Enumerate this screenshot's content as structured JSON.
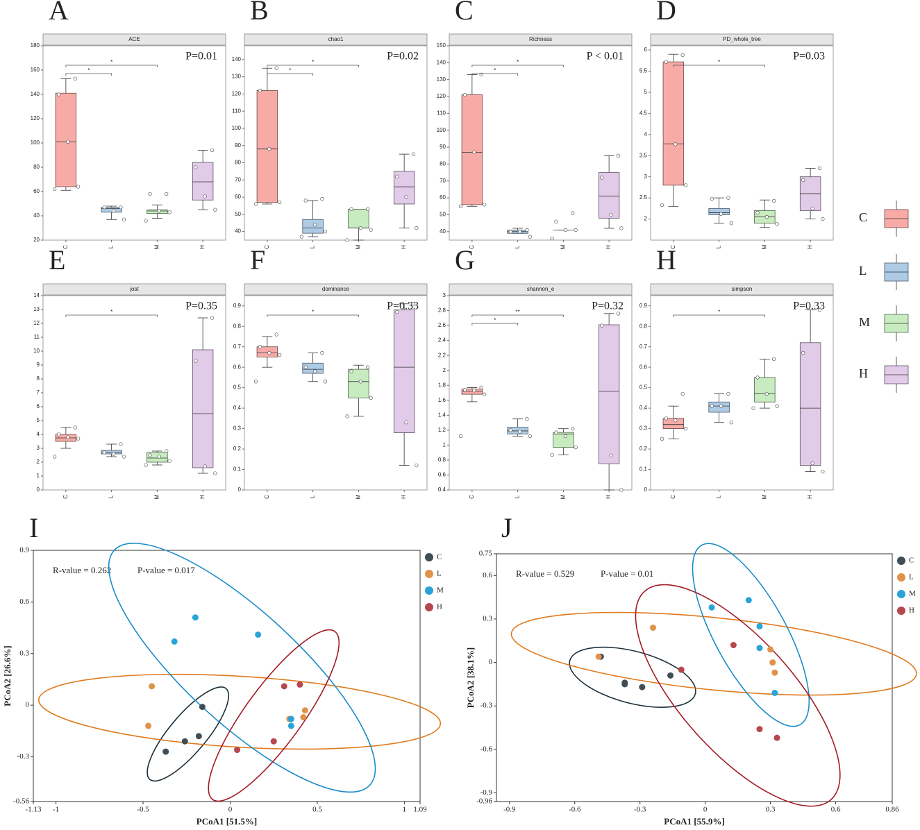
{
  "legend": {
    "labels": [
      "C",
      "L",
      "M",
      "H"
    ],
    "fill": [
      "#f8aba6",
      "#aecbe6",
      "#c8ecc0",
      "#e1cbe8"
    ],
    "stroke": [
      "#6b4a48",
      "#4a5968",
      "#4d6449",
      "#5e5163"
    ]
  },
  "chart_data": [
    {
      "type": "box",
      "panel": "A",
      "title": "ACE",
      "annotation": "P=0.01",
      "categories": [
        "C",
        "L",
        "M",
        "H"
      ],
      "ylim": [
        20,
        180
      ],
      "yticks": [
        20,
        40,
        60,
        80,
        100,
        120,
        140,
        160,
        180
      ],
      "boxes": [
        {
          "min": 61,
          "q1": 64,
          "median": 101,
          "q3": 141,
          "max": 153,
          "points": [
            153,
            140,
            101,
            64,
            62
          ]
        },
        {
          "min": 37,
          "q1": 43,
          "median": 46,
          "q3": 47,
          "max": 48,
          "points": [
            47,
            47,
            44,
            37
          ]
        },
        {
          "min": 38,
          "q1": 42,
          "median": 44,
          "q3": 45,
          "max": 49,
          "points": [
            58,
            58,
            44,
            43,
            36
          ]
        },
        {
          "min": 45,
          "q1": 53,
          "median": 68,
          "q3": 84,
          "max": 94,
          "points": [
            94,
            80,
            56,
            45
          ]
        }
      ],
      "brackets": [
        {
          "from": 0,
          "to": 1,
          "label": "*"
        },
        {
          "from": 0,
          "to": 2,
          "label": "*"
        }
      ]
    },
    {
      "type": "box",
      "panel": "B",
      "title": "chao1",
      "annotation": "P=0.02",
      "categories": [
        "C",
        "L",
        "M",
        "H"
      ],
      "ylim": [
        35,
        148
      ],
      "yticks": [
        40,
        50,
        60,
        70,
        80,
        90,
        100,
        110,
        120,
        130,
        140
      ],
      "boxes": [
        {
          "min": 56,
          "q1": 57,
          "median": 88,
          "q3": 122,
          "max": 135,
          "points": [
            135,
            122,
            88,
            57,
            56
          ]
        },
        {
          "min": 37,
          "q1": 39,
          "median": 42,
          "q3": 47,
          "max": 58,
          "points": [
            59,
            58,
            44,
            40,
            37
          ]
        },
        {
          "min": 35,
          "q1": 42,
          "median": 42,
          "q3": 53,
          "max": 53,
          "points": [
            53,
            53,
            42,
            41,
            35
          ]
        },
        {
          "min": 42,
          "q1": 56,
          "median": 66,
          "q3": 75,
          "max": 85,
          "points": [
            85,
            72,
            60,
            42
          ]
        }
      ],
      "brackets": [
        {
          "from": 0,
          "to": 1,
          "label": "*"
        },
        {
          "from": 0,
          "to": 2,
          "label": "*"
        }
      ]
    },
    {
      "type": "box",
      "panel": "C",
      "title": "Richness",
      "annotation": "P < 0.01",
      "categories": [
        "C",
        "L",
        "M",
        "H"
      ],
      "ylim": [
        35,
        150
      ],
      "yticks": [
        40,
        50,
        60,
        70,
        80,
        90,
        100,
        110,
        120,
        130,
        140,
        150
      ],
      "boxes": [
        {
          "min": 55,
          "q1": 56,
          "median": 87,
          "q3": 121,
          "max": 133,
          "points": [
            133,
            121,
            87,
            56,
            55
          ]
        },
        {
          "min": 39,
          "q1": 39,
          "median": 40,
          "q3": 41,
          "max": 42,
          "points": [
            41,
            40,
            40,
            37
          ]
        },
        {
          "min": 41,
          "q1": 41,
          "median": 41,
          "q3": 41,
          "max": 41,
          "points": [
            51,
            46,
            41,
            41,
            36
          ]
        },
        {
          "min": 42,
          "q1": 48,
          "median": 61,
          "q3": 75,
          "max": 85,
          "points": [
            85,
            72,
            50,
            42
          ]
        }
      ],
      "brackets": [
        {
          "from": 0,
          "to": 1,
          "label": "*"
        },
        {
          "from": 0,
          "to": 2,
          "label": "*"
        }
      ]
    },
    {
      "type": "box",
      "panel": "D",
      "title": "PD_whole_tree",
      "annotation": "P=0.03",
      "categories": [
        "C",
        "L",
        "M",
        "H"
      ],
      "ylim": [
        1.5,
        6.1
      ],
      "yticks": [
        2,
        2.5,
        3,
        3.5,
        4,
        4.5,
        5,
        5.5,
        6
      ],
      "boxes": [
        {
          "min": 2.3,
          "q1": 2.8,
          "median": 3.78,
          "q3": 5.72,
          "max": 5.9,
          "points": [
            5.88,
            5.72,
            3.77,
            2.8,
            2.33
          ]
        },
        {
          "min": 1.9,
          "q1": 2.1,
          "median": 2.15,
          "q3": 2.25,
          "max": 2.5,
          "points": [
            2.5,
            2.48,
            2.12,
            1.9
          ]
        },
        {
          "min": 1.8,
          "q1": 1.9,
          "median": 2.05,
          "q3": 2.2,
          "max": 2.45,
          "points": [
            2.43,
            2.15,
            2.05,
            1.88
          ]
        },
        {
          "min": 2,
          "q1": 2.2,
          "median": 2.6,
          "q3": 3,
          "max": 3.2,
          "points": [
            3.2,
            2.92,
            2.25,
            2
          ]
        }
      ],
      "brackets": [
        {
          "from": 0,
          "to": 2,
          "label": "*"
        }
      ]
    },
    {
      "type": "box",
      "panel": "E",
      "title": "jost",
      "annotation": "P=0.35",
      "categories": [
        "C",
        "L",
        "M",
        "H"
      ],
      "ylim": [
        0,
        14
      ],
      "yticks": [
        0,
        1,
        2,
        3,
        4,
        5,
        6,
        7,
        8,
        9,
        10,
        11,
        12,
        13,
        14
      ],
      "boxes": [
        {
          "min": 3,
          "q1": 3.5,
          "median": 3.75,
          "q3": 4,
          "max": 4.5,
          "points": [
            4.5,
            4,
            3.8,
            3.7,
            2.4
          ]
        },
        {
          "min": 2.4,
          "q1": 2.6,
          "median": 2.7,
          "q3": 2.85,
          "max": 3.3,
          "points": [
            3.3,
            2.7,
            2.6,
            2.4
          ]
        },
        {
          "min": 1.8,
          "q1": 2,
          "median": 2.3,
          "q3": 2.7,
          "max": 2.8,
          "points": [
            2.8,
            2.5,
            2.4,
            2.1,
            1.8
          ]
        },
        {
          "min": 1.2,
          "q1": 1.6,
          "median": 5.5,
          "q3": 10.1,
          "max": 12.4,
          "points": [
            12.4,
            9.3,
            1.7,
            1.2
          ]
        }
      ],
      "brackets": [
        {
          "from": 0,
          "to": 2,
          "label": "*"
        }
      ]
    },
    {
      "type": "box",
      "panel": "F",
      "title": "dominance",
      "annotation": "P=0.33",
      "categories": [
        "C",
        "L",
        "M",
        "H"
      ],
      "ylim": [
        0,
        0.95
      ],
      "yticks": [
        0,
        0.1,
        0.2,
        0.3,
        0.4,
        0.5,
        0.6,
        0.7,
        0.8,
        0.9
      ],
      "boxes": [
        {
          "min": 0.6,
          "q1": 0.65,
          "median": 0.67,
          "q3": 0.7,
          "max": 0.75,
          "points": [
            0.76,
            0.7,
            0.67,
            0.66,
            0.53
          ]
        },
        {
          "min": 0.53,
          "q1": 0.57,
          "median": 0.59,
          "q3": 0.62,
          "max": 0.67,
          "points": [
            0.67,
            0.6,
            0.58,
            0.53
          ]
        },
        {
          "min": 0.36,
          "q1": 0.45,
          "median": 0.53,
          "q3": 0.59,
          "max": 0.61,
          "points": [
            0.6,
            0.58,
            0.53,
            0.45,
            0.36
          ]
        },
        {
          "min": 0.12,
          "q1": 0.28,
          "median": 0.6,
          "q3": 0.88,
          "max": 0.91,
          "points": [
            0.91,
            0.87,
            0.33,
            0.12
          ]
        }
      ],
      "brackets": [
        {
          "from": 0,
          "to": 2,
          "label": "*"
        }
      ]
    },
    {
      "type": "box",
      "panel": "G",
      "title": "shannon_e",
      "annotation": "P=0.32",
      "categories": [
        "C",
        "L",
        "M",
        "H"
      ],
      "ylim": [
        0.4,
        3
      ],
      "yticks": [
        0.4,
        0.6,
        0.8,
        1,
        1.2,
        1.4,
        1.6,
        1.8,
        2,
        2.2,
        2.4,
        2.6,
        2.8,
        3
      ],
      "boxes": [
        {
          "min": 1.58,
          "q1": 1.68,
          "median": 1.72,
          "q3": 1.75,
          "max": 1.77,
          "points": [
            1.77,
            1.74,
            1.73,
            1.68,
            1.12
          ]
        },
        {
          "min": 1.12,
          "q1": 1.15,
          "median": 1.19,
          "q3": 1.24,
          "max": 1.35,
          "points": [
            1.35,
            1.2,
            1.18,
            1.12
          ]
        },
        {
          "min": 0.87,
          "q1": 0.97,
          "median": 1.15,
          "q3": 1.17,
          "max": 1.22,
          "points": [
            1.22,
            1.17,
            1.12,
            0.97,
            0.87
          ]
        },
        {
          "min": 0.4,
          "q1": 0.75,
          "median": 1.72,
          "q3": 2.61,
          "max": 2.76,
          "points": [
            2.76,
            2.6,
            0.86,
            0.4
          ]
        }
      ],
      "brackets": [
        {
          "from": 0,
          "to": 1,
          "label": "*"
        },
        {
          "from": 0,
          "to": 2,
          "label": "**"
        }
      ]
    },
    {
      "type": "box",
      "panel": "H",
      "title": "simpson",
      "annotation": "P=0.33",
      "categories": [
        "C",
        "L",
        "M",
        "H"
      ],
      "ylim": [
        0,
        0.95
      ],
      "yticks": [
        0,
        0.1,
        0.2,
        0.3,
        0.4,
        0.5,
        0.6,
        0.7,
        0.8,
        0.9
      ],
      "boxes": [
        {
          "min": 0.25,
          "q1": 0.3,
          "median": 0.32,
          "q3": 0.35,
          "max": 0.41,
          "points": [
            0.47,
            0.35,
            0.34,
            0.3,
            0.25
          ]
        },
        {
          "min": 0.33,
          "q1": 0.38,
          "median": 0.41,
          "q3": 0.43,
          "max": 0.47,
          "points": [
            0.47,
            0.41,
            0.41,
            0.33
          ]
        },
        {
          "min": 0.4,
          "q1": 0.43,
          "median": 0.47,
          "q3": 0.55,
          "max": 0.64,
          "points": [
            0.64,
            0.55,
            0.47,
            0.41,
            0.4
          ]
        },
        {
          "min": 0.09,
          "q1": 0.12,
          "median": 0.4,
          "q3": 0.72,
          "max": 0.88,
          "points": [
            0.88,
            0.67,
            0.13,
            0.09
          ]
        }
      ],
      "brackets": [
        {
          "from": 0,
          "to": 2,
          "label": "*"
        }
      ]
    },
    {
      "type": "scatter",
      "panel": "I",
      "annotations": [
        "R-value = 0.262",
        "P-value = 0.017"
      ],
      "x_label": "PCoA1 [51.5%]",
      "y_label": "PCoA2 [26.6%]",
      "xlim": [
        -1.13,
        1.09
      ],
      "xticks": [
        -1.13,
        -1,
        -0.5,
        0,
        0.5,
        1,
        1.09
      ],
      "ylim": [
        -0.56,
        0.9
      ],
      "yticks": [
        -0.56,
        -0.3,
        0,
        0.3,
        0.6,
        0.9
      ],
      "series": [
        {
          "name": "C",
          "color": "#3e4d56",
          "ellipse_color": "#1c2f3a",
          "x": [
            -0.37,
            -0.26,
            -0.18,
            -0.16
          ],
          "y": [
            -0.27,
            -0.21,
            -0.18,
            -0.01
          ]
        },
        {
          "name": "L",
          "color": "#e0924a",
          "ellipse_color": "#e07a1f",
          "x": [
            -0.45,
            -0.47,
            0.34,
            0.43,
            0.42
          ],
          "y": [
            0.11,
            -0.12,
            -0.08,
            -0.03,
            -0.07
          ]
        },
        {
          "name": "M",
          "color": "#2aa4d8",
          "ellipse_color": "#1a8cc7",
          "x": [
            -0.2,
            -0.32,
            0.16,
            0.35,
            0.35
          ],
          "y": [
            0.51,
            0.37,
            0.41,
            -0.08,
            -0.12
          ]
        },
        {
          "name": "H",
          "color": "#b5474d",
          "ellipse_color": "#a31a24",
          "x": [
            0.04,
            0.25,
            0.31,
            0.4
          ],
          "y": [
            -0.26,
            -0.21,
            0.11,
            0.12
          ]
        }
      ]
    },
    {
      "type": "scatter",
      "panel": "J",
      "annotations": [
        "R-value = 0.529",
        "P-value = 0.01"
      ],
      "x_label": "PCoA1 [55.9%]",
      "y_label": "PCoA2 [38.1%]",
      "xlim": [
        -0.96,
        0.86
      ],
      "xticks": [
        -0.9,
        -0.6,
        -0.3,
        0,
        0.3,
        0.6,
        0.86
      ],
      "ylim": [
        -0.96,
        0.75
      ],
      "yticks": [
        -0.96,
        -0.9,
        -0.6,
        -0.3,
        0,
        0.3,
        0.6,
        0.75
      ],
      "series": [
        {
          "name": "C",
          "color": "#3e4d56",
          "ellipse_color": "#1c2f3a",
          "x": [
            -0.48,
            -0.37,
            -0.37,
            -0.29,
            -0.16
          ],
          "y": [
            0.04,
            -0.14,
            -0.15,
            -0.17,
            -0.09
          ]
        },
        {
          "name": "L",
          "color": "#e0924a",
          "ellipse_color": "#e07a1f",
          "x": [
            -0.49,
            -0.24,
            0.3,
            0.31,
            0.32
          ],
          "y": [
            0.04,
            0.24,
            0.09,
            0,
            -0.07
          ]
        },
        {
          "name": "M",
          "color": "#2aa4d8",
          "ellipse_color": "#1a8cc7",
          "x": [
            0.03,
            0.2,
            0.25,
            0.25,
            0.32
          ],
          "y": [
            0.38,
            0.43,
            0.25,
            0.1,
            -0.21
          ]
        },
        {
          "name": "H",
          "color": "#b5474d",
          "ellipse_color": "#a31a24",
          "x": [
            -0.11,
            0.13,
            0.25,
            0.33
          ],
          "y": [
            -0.05,
            0.12,
            -0.46,
            -0.52
          ]
        }
      ]
    }
  ]
}
